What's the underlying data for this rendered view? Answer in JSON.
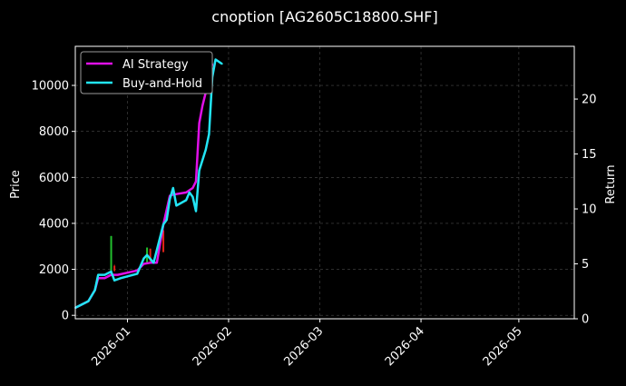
{
  "chart_data": {
    "type": "line",
    "title": "cnoption [AG2605C18800.SHF]",
    "xlabel": "",
    "ylabel": "Price",
    "y2label": "Return",
    "x_axis": {
      "type": "date",
      "range": [
        "2025-12-16",
        "2026-05-18"
      ],
      "ticks": [
        "2026-01-01",
        "2026-02-01",
        "2026-03-01",
        "2026-04-01",
        "2026-05-01"
      ],
      "tick_labels": [
        "2026-01",
        "2026-02",
        "2026-03",
        "2026-04",
        "2026-05"
      ]
    },
    "y_axis": {
      "range": [
        -150,
        11700
      ],
      "ticks": [
        0,
        2000,
        4000,
        6000,
        8000,
        10000
      ],
      "tick_labels": [
        "0",
        "2000",
        "4000",
        "6000",
        "8000",
        "10000"
      ]
    },
    "y2_axis": {
      "range": [
        0,
        24.8
      ],
      "ticks": [
        0,
        5,
        10,
        15,
        20
      ],
      "tick_labels": [
        "0",
        "5",
        "10",
        "15",
        "20"
      ]
    },
    "grid": true,
    "legend": {
      "position": "top-left",
      "entries": [
        "AI Strategy",
        "Buy-and-Hold"
      ]
    },
    "colors": {
      "ai_strategy": "#e010e8",
      "buy_and_hold": "#22e5f5",
      "candle_up": "#22c02e",
      "candle_down": "#e02418",
      "grid": "#4a4a4a",
      "axis": "#ffffff"
    },
    "series": [
      {
        "name": "AI Strategy",
        "axis": "y2",
        "points": [
          [
            "2025-12-16",
            1.0
          ],
          [
            "2025-12-18",
            1.3
          ],
          [
            "2025-12-20",
            1.6
          ],
          [
            "2025-12-22",
            2.6
          ],
          [
            "2025-12-23",
            3.7
          ],
          [
            "2025-12-25",
            3.7
          ],
          [
            "2025-12-27",
            4.0
          ],
          [
            "2025-12-29",
            4.0
          ],
          [
            "2026-01-04",
            4.4
          ],
          [
            "2026-01-06",
            5.0
          ],
          [
            "2026-01-08",
            5.1
          ],
          [
            "2026-01-10",
            5.1
          ],
          [
            "2026-01-12",
            8.6
          ],
          [
            "2026-01-14",
            11.2
          ],
          [
            "2026-01-15",
            11.3
          ],
          [
            "2026-01-19",
            11.5
          ],
          [
            "2026-01-21",
            11.9
          ],
          [
            "2026-01-22",
            12.5
          ],
          [
            "2026-01-23",
            17.8
          ],
          [
            "2026-01-24",
            19.4
          ],
          [
            "2026-01-26",
            21.8
          ],
          [
            "2026-01-27",
            23.2
          ]
        ]
      },
      {
        "name": "Buy-and-Hold",
        "axis": "y2",
        "points": [
          [
            "2025-12-16",
            1.0
          ],
          [
            "2025-12-18",
            1.3
          ],
          [
            "2025-12-20",
            1.6
          ],
          [
            "2025-12-22",
            2.6
          ],
          [
            "2025-12-23",
            4.0
          ],
          [
            "2025-12-25",
            4.0
          ],
          [
            "2025-12-27",
            4.3
          ],
          [
            "2025-12-28",
            3.5
          ],
          [
            "2025-12-30",
            3.7
          ],
          [
            "2026-01-04",
            4.1
          ],
          [
            "2026-01-06",
            5.5
          ],
          [
            "2026-01-07",
            5.8
          ],
          [
            "2026-01-09",
            5.1
          ],
          [
            "2026-01-12",
            8.6
          ],
          [
            "2026-01-13",
            9.0
          ],
          [
            "2026-01-14",
            10.9
          ],
          [
            "2026-01-15",
            11.9
          ],
          [
            "2026-01-16",
            10.3
          ],
          [
            "2026-01-19",
            10.8
          ],
          [
            "2026-01-20",
            11.5
          ],
          [
            "2026-01-21",
            11.1
          ],
          [
            "2026-01-22",
            9.8
          ],
          [
            "2026-01-23",
            13.5
          ],
          [
            "2026-01-25",
            15.4
          ],
          [
            "2026-01-26",
            16.8
          ],
          [
            "2026-01-27",
            22.0
          ],
          [
            "2026-01-28",
            23.6
          ],
          [
            "2026-01-30",
            23.2
          ]
        ]
      }
    ],
    "candles": [
      {
        "date": "2025-12-27",
        "open": 1800,
        "close": 3450,
        "high": 3450,
        "low": 1800,
        "direction": "up"
      },
      {
        "date": "2025-12-28",
        "open": 2150,
        "close": 1950,
        "high": 2200,
        "low": 1900,
        "direction": "down"
      },
      {
        "date": "2026-01-07",
        "open": 2250,
        "close": 2950,
        "high": 2950,
        "low": 2250,
        "direction": "up"
      },
      {
        "date": "2026-01-08",
        "open": 2900,
        "close": 2350,
        "high": 2900,
        "low": 2350,
        "direction": "down"
      },
      {
        "date": "2026-01-12",
        "open": 3700,
        "close": 2750,
        "high": 3700,
        "low": 2750,
        "direction": "down"
      }
    ]
  }
}
